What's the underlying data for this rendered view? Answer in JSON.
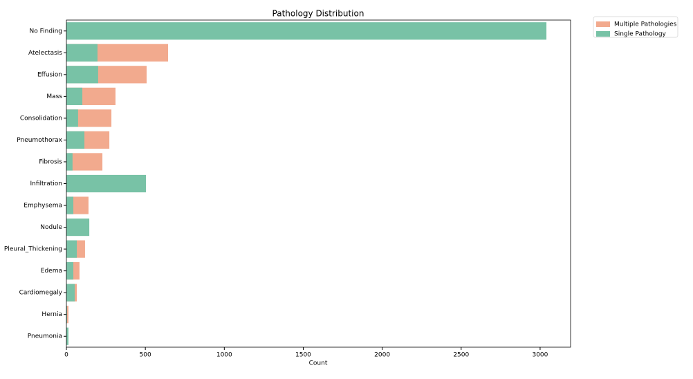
{
  "chart_data": {
    "type": "bar",
    "orientation": "horizontal",
    "title": "Pathology Distribution",
    "x_label": "Count",
    "categories": [
      "No Finding",
      "Atelectasis",
      "Effusion",
      "Mass",
      "Consolidation",
      "Pneumothorax",
      "Fibrosis",
      "Infiltration",
      "Emphysema",
      "Nodule",
      "Pleural_Thickening",
      "Edema",
      "Cardiomegaly",
      "Hernia",
      "Pneumonia"
    ],
    "series": [
      {
        "name": "Multiple Pathologies",
        "color": "#f2aa8e",
        "values": [
          0,
          644,
          508,
          311,
          285,
          272,
          228,
          0,
          140,
          0,
          118,
          83,
          66,
          13,
          0
        ]
      },
      {
        "name": "Single Pathology",
        "color": "#78c2a6",
        "values": [
          3040,
          197,
          201,
          101,
          74,
          114,
          39,
          504,
          44,
          145,
          66,
          44,
          53,
          4,
          13
        ]
      }
    ],
    "xlim": [
      0,
      3193
    ],
    "xticks": [
      0,
      500,
      1000,
      1500,
      2000,
      2500,
      3000
    ],
    "legend": "outside-upper-right"
  }
}
